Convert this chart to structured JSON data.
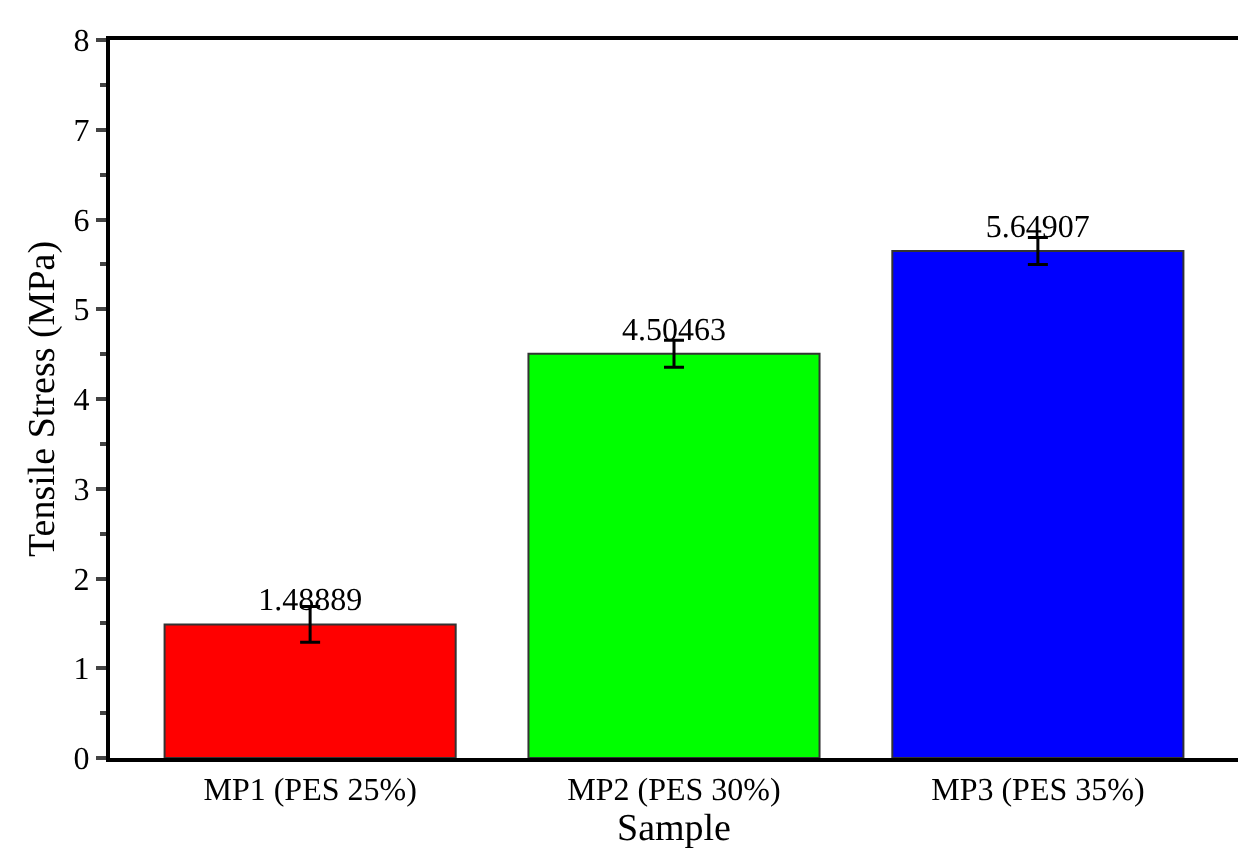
{
  "chart_data": {
    "type": "bar",
    "xlabel": "Sample",
    "ylabel": "Tensile Stress (MPa)",
    "categories": [
      "MP1 (PES 25%)",
      "MP2 (PES 30%)",
      "MP3 (PES 35%)"
    ],
    "values": [
      1.48889,
      4.50463,
      5.64907
    ],
    "colors": [
      "#ff0000",
      "#00ff00",
      "#0000ff"
    ],
    "errors": [
      0.2,
      0.15,
      0.15
    ],
    "data_labels": true,
    "ylim": [
      0,
      8
    ],
    "yticks": [
      0,
      1,
      2,
      3,
      4,
      5,
      6,
      7,
      8
    ]
  }
}
